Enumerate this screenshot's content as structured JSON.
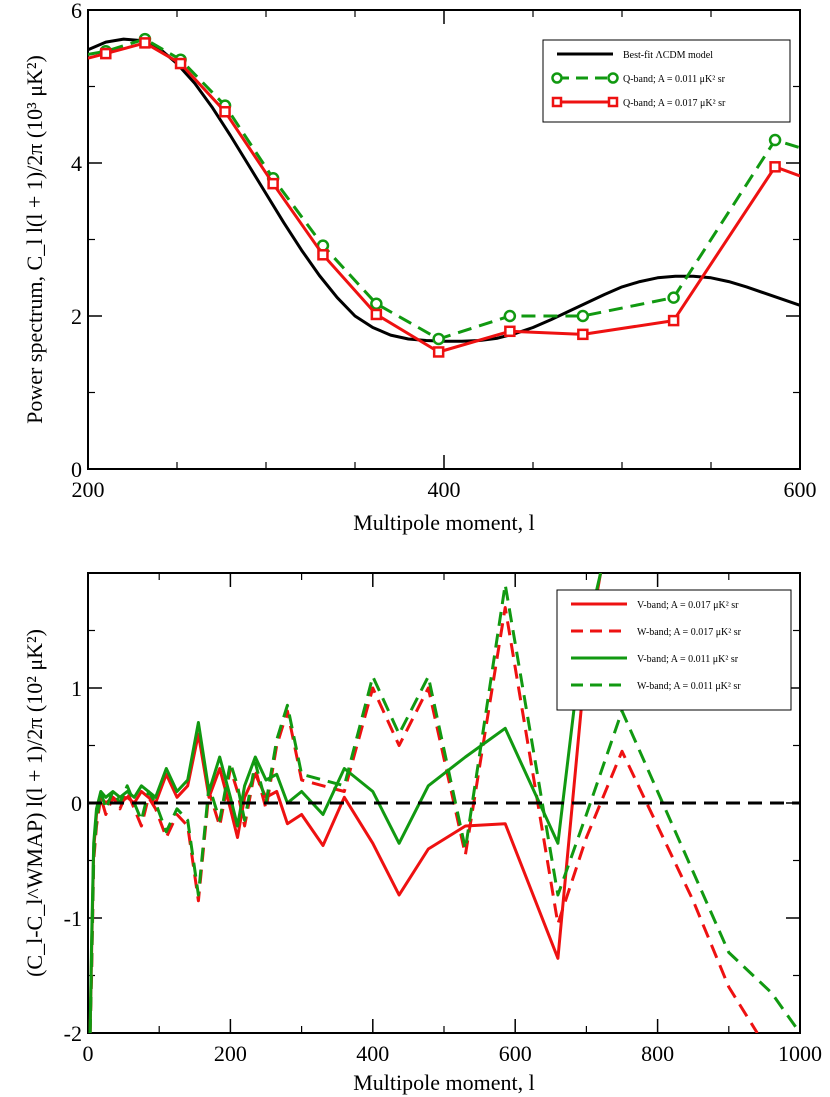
{
  "chart_data": [
    {
      "type": "line",
      "xlabel": "Multipole moment, l",
      "ylabel": "Power spectrum, C_l l(l + 1)/2π (10³ μK²)",
      "xlim": [
        200,
        600
      ],
      "ylim": [
        0,
        6
      ],
      "x_ticks": [
        "200",
        "400",
        "600"
      ],
      "y_ticks": [
        "0",
        "2",
        "4",
        "6"
      ],
      "legend_position": "top-right",
      "series": [
        {
          "name": "Best-fit ΛCDM model",
          "color": "#000000",
          "style": "solid",
          "marker": "none",
          "x": [
            200,
            210,
            220,
            230,
            240,
            250,
            260,
            270,
            280,
            290,
            300,
            310,
            320,
            330,
            340,
            350,
            360,
            370,
            380,
            390,
            400,
            410,
            420,
            430,
            440,
            450,
            460,
            470,
            480,
            490,
            500,
            510,
            520,
            530,
            540,
            550,
            560,
            570,
            580,
            590,
            600
          ],
          "y": [
            5.48,
            5.58,
            5.62,
            5.6,
            5.5,
            5.3,
            5.04,
            4.72,
            4.36,
            3.98,
            3.6,
            3.22,
            2.86,
            2.53,
            2.24,
            2.0,
            1.85,
            1.75,
            1.7,
            1.68,
            1.67,
            1.67,
            1.68,
            1.71,
            1.77,
            1.85,
            1.95,
            2.06,
            2.17,
            2.28,
            2.38,
            2.45,
            2.5,
            2.52,
            2.52,
            2.5,
            2.45,
            2.38,
            2.3,
            2.22,
            2.14
          ]
        },
        {
          "name": "Q-band;  A = 0.011 μK² sr",
          "color": "#119911",
          "style": "dashed",
          "marker": "circle",
          "x": [
            200,
            210,
            232,
            252,
            277,
            304,
            332,
            362,
            397,
            437,
            478,
            529,
            586,
            600
          ],
          "y": [
            5.42,
            5.46,
            5.62,
            5.35,
            4.75,
            3.8,
            2.92,
            2.16,
            1.7,
            2.0,
            2.0,
            2.24,
            4.3,
            4.2
          ]
        },
        {
          "name": "Q-band;  A = 0.017 μK² sr",
          "color": "#ee1111",
          "style": "solid",
          "marker": "square",
          "x": [
            200,
            210,
            232,
            252,
            277,
            304,
            332,
            362,
            397,
            437,
            478,
            529,
            586,
            600
          ],
          "y": [
            5.37,
            5.43,
            5.57,
            5.3,
            4.67,
            3.73,
            2.8,
            2.02,
            1.53,
            1.8,
            1.76,
            1.94,
            3.95,
            3.83
          ]
        }
      ]
    },
    {
      "type": "line",
      "xlabel": "Multipole moment, l",
      "ylabel": "(C_l-C_l^WMAP) l(l + 1)/2π (10² μK²)",
      "xlim": [
        0,
        1000
      ],
      "ylim": [
        -2,
        2
      ],
      "x_ticks": [
        "0",
        "200",
        "400",
        "600",
        "800",
        "1000"
      ],
      "y_ticks": [
        "-2",
        "-1",
        "0",
        "1"
      ],
      "legend_position": "top-right",
      "series": [
        {
          "name": "V-band; A = 0.017 μK² sr",
          "color": "#ee1111",
          "style": "solid",
          "x": [
            3,
            5,
            8,
            12,
            18,
            25,
            35,
            45,
            55,
            65,
            75,
            85,
            95,
            110,
            125,
            140,
            155,
            170,
            185,
            200,
            210,
            220,
            235,
            250,
            265,
            280,
            300,
            330,
            360,
            400,
            437,
            478,
            530,
            586,
            660,
            700,
            720
          ],
          "y": [
            -2.0,
            -1.3,
            -0.4,
            -0.1,
            0.05,
            0.0,
            0.05,
            0.0,
            0.05,
            0.0,
            0.1,
            0.05,
            0.0,
            0.25,
            0.05,
            0.15,
            0.6,
            0.05,
            0.3,
            -0.05,
            -0.3,
            0.05,
            0.25,
            0.05,
            0.1,
            -0.18,
            -0.1,
            -0.37,
            0.05,
            -0.35,
            -0.8,
            -0.4,
            -0.2,
            -0.18,
            -1.35,
            1.3,
            2.0
          ]
        },
        {
          "name": "W-band; A = 0.017 μK² sr",
          "color": "#ee1111",
          "style": "dashed",
          "x": [
            3,
            5,
            8,
            12,
            18,
            25,
            35,
            45,
            55,
            65,
            75,
            85,
            95,
            110,
            125,
            140,
            155,
            170,
            185,
            200,
            210,
            220,
            235,
            250,
            265,
            280,
            300,
            330,
            360,
            400,
            437,
            478,
            530,
            586,
            660,
            700,
            750,
            800,
            850,
            900,
            940
          ],
          "y": [
            -2.0,
            -1.5,
            -0.5,
            -0.2,
            0.05,
            -0.1,
            0.05,
            -0.05,
            0.1,
            -0.05,
            -0.2,
            0.05,
            -0.05,
            -0.3,
            -0.1,
            -0.2,
            -0.85,
            0.1,
            -0.2,
            0.3,
            0.1,
            -0.2,
            0.3,
            -0.05,
            0.5,
            0.8,
            0.2,
            0.15,
            0.1,
            1.0,
            0.5,
            1.0,
            -0.45,
            1.7,
            -1.05,
            -0.3,
            0.45,
            -0.2,
            -0.85,
            -1.6,
            -2.0
          ]
        },
        {
          "name": "V-band; A = 0.011 μK² sr",
          "color": "#119911",
          "style": "solid",
          "x": [
            3,
            5,
            8,
            12,
            18,
            25,
            35,
            45,
            55,
            65,
            75,
            85,
            95,
            110,
            125,
            140,
            155,
            170,
            185,
            200,
            210,
            220,
            235,
            250,
            265,
            280,
            300,
            330,
            360,
            400,
            437,
            478,
            530,
            586,
            660,
            690,
            720
          ],
          "y": [
            -2.0,
            -1.2,
            -0.35,
            -0.05,
            0.1,
            0.05,
            0.1,
            0.05,
            0.1,
            0.05,
            0.15,
            0.1,
            0.05,
            0.3,
            0.1,
            0.2,
            0.7,
            0.1,
            0.4,
            0.05,
            -0.2,
            0.15,
            0.4,
            0.2,
            0.25,
            0.0,
            0.1,
            -0.1,
            0.3,
            0.1,
            -0.35,
            0.15,
            0.4,
            0.65,
            -0.35,
            1.2,
            2.0
          ]
        },
        {
          "name": "W-band; A = 0.011 μK² sr",
          "color": "#119911",
          "style": "dashed",
          "x": [
            3,
            5,
            8,
            12,
            18,
            25,
            35,
            45,
            55,
            65,
            75,
            85,
            95,
            110,
            125,
            140,
            155,
            170,
            185,
            200,
            210,
            220,
            235,
            250,
            265,
            280,
            300,
            330,
            360,
            400,
            437,
            478,
            530,
            586,
            660,
            700,
            750,
            800,
            850,
            900,
            960,
            1000
          ],
          "y": [
            -2.0,
            -1.4,
            -0.45,
            -0.15,
            0.1,
            -0.05,
            0.1,
            0.0,
            0.15,
            0.0,
            -0.15,
            0.1,
            0.0,
            -0.25,
            -0.05,
            -0.15,
            -0.8,
            0.15,
            -0.15,
            0.35,
            0.15,
            -0.15,
            0.35,
            0.0,
            0.55,
            0.85,
            0.25,
            0.2,
            0.15,
            1.1,
            0.6,
            1.1,
            -0.4,
            1.9,
            -0.8,
            -0.1,
            0.8,
            0.1,
            -0.6,
            -1.3,
            -1.65,
            -2.0
          ]
        },
        {
          "name": "",
          "color": "#000000",
          "style": "dashed-zero",
          "x": [
            0,
            1000
          ],
          "y": [
            0,
            0
          ]
        }
      ]
    }
  ]
}
